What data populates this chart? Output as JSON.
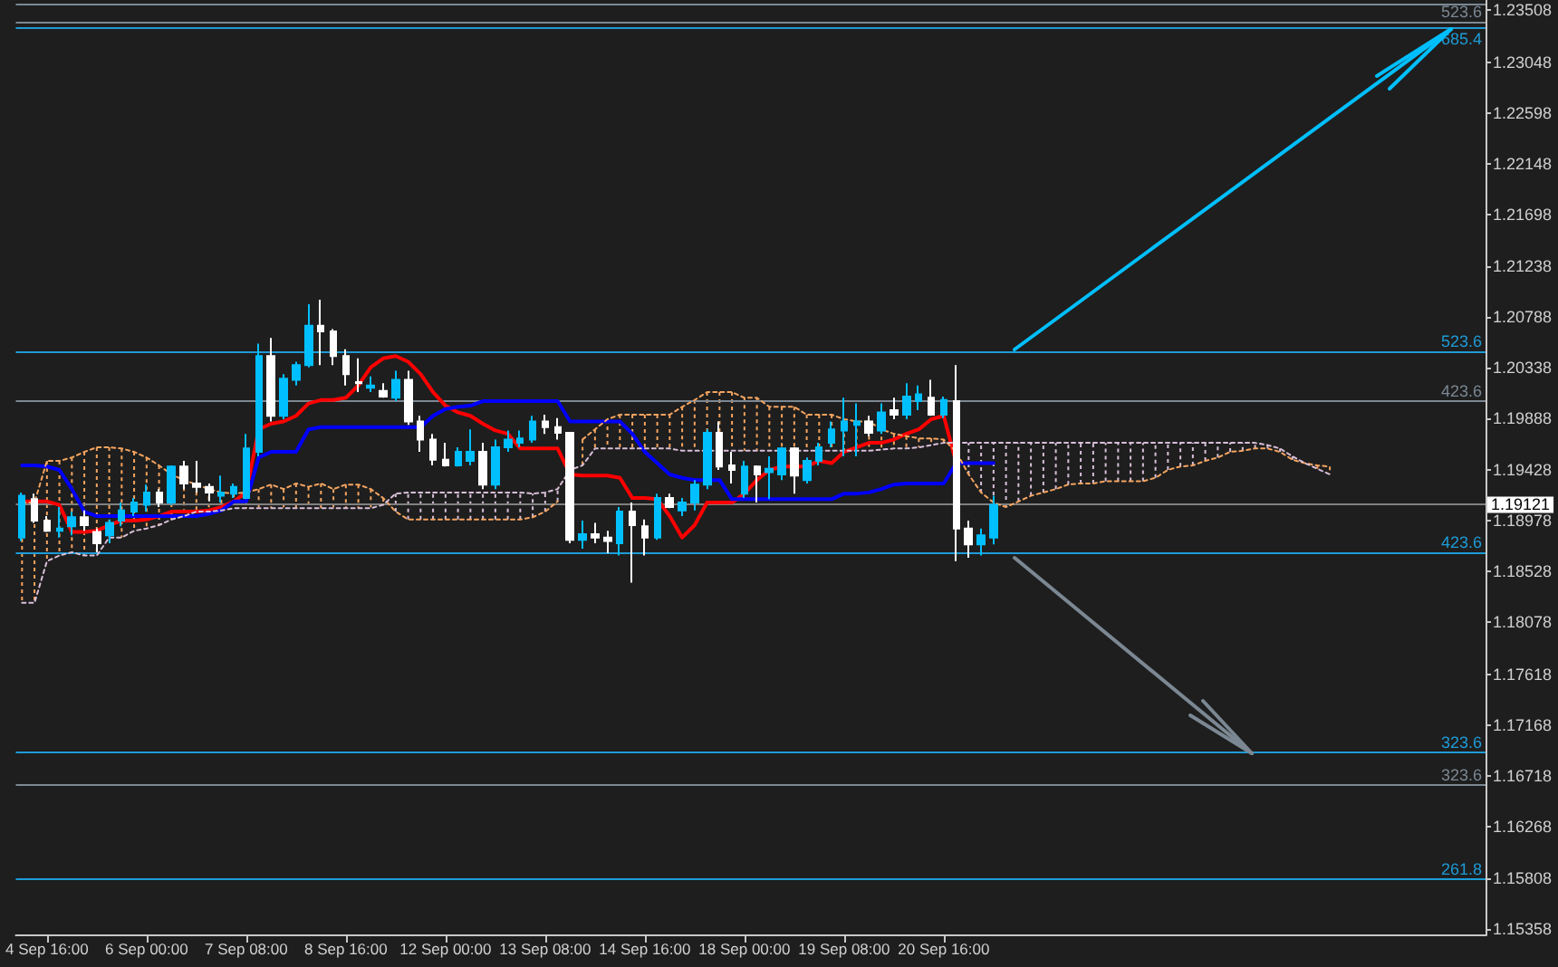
{
  "chart_data": {
    "type": "candlestick",
    "categories": [
      null,
      null,
      "4 Sep 16:00",
      null,
      null,
      null,
      null,
      null,
      null,
      null,
      "6 Sep 00:00",
      null,
      null,
      null,
      null,
      null,
      null,
      null,
      "7 Sep 08:00",
      null,
      null,
      null,
      null,
      null,
      null,
      null,
      "8 Sep 16:00",
      null,
      null,
      null,
      null,
      null,
      null,
      null,
      "12 Sep 00:00",
      null,
      null,
      null,
      null,
      null,
      null,
      null,
      "13 Sep 08:00",
      null,
      null,
      null,
      null,
      null,
      null,
      null,
      "14 Sep 16:00",
      null,
      null,
      null,
      null,
      null,
      null,
      null,
      "18 Sep 00:00",
      null,
      null,
      null,
      null,
      null,
      null,
      null,
      "19 Sep 08:00",
      null,
      null,
      null,
      null,
      null,
      null,
      null,
      "20 Sep 16:00",
      null,
      null,
      null,
      null,
      null,
      null,
      null,
      null,
      null,
      null,
      null,
      null,
      null,
      null,
      null,
      null,
      null,
      null,
      null,
      null,
      null,
      null,
      null,
      null,
      null,
      null,
      null,
      null,
      null,
      null,
      null,
      null,
      null,
      null,
      null,
      null,
      null,
      null,
      null,
      null,
      null,
      null,
      null
    ],
    "ohlc": [
      [
        1.1883,
        1.1923,
        1.188,
        1.192
      ],
      [
        1.1917,
        1.1922,
        1.1896,
        1.1898
      ],
      [
        1.1898,
        1.1902,
        1.1888,
        1.1889
      ],
      [
        1.1889,
        1.191,
        1.1883,
        1.1891
      ],
      [
        1.1893,
        1.1906,
        1.1885,
        1.1901
      ],
      [
        1.1901,
        1.1907,
        1.1889,
        1.1894
      ],
      [
        1.1888,
        1.1891,
        1.187,
        1.1878
      ],
      [
        1.1885,
        1.1899,
        1.1878,
        1.1896
      ],
      [
        1.1898,
        1.1914,
        1.1893,
        1.1907
      ],
      [
        1.1906,
        1.1918,
        1.1902,
        1.1914
      ],
      [
        1.1912,
        1.193,
        1.1906,
        1.1923
      ],
      [
        1.1923,
        1.1926,
        1.191,
        1.1914
      ],
      [
        1.1914,
        1.1947,
        1.1912,
        1.1946
      ],
      [
        1.1946,
        1.1951,
        1.1926,
        1.1931
      ],
      [
        1.1931,
        1.1951,
        1.1923,
        1.1928
      ],
      [
        1.1928,
        1.1931,
        1.1915,
        1.1923
      ],
      [
        1.192,
        1.1938,
        1.1914,
        1.1923
      ],
      [
        1.1922,
        1.1931,
        1.1918,
        1.1928
      ],
      [
        1.1918,
        1.1975,
        1.1917,
        1.1962
      ],
      [
        1.1959,
        1.2055,
        1.1955,
        1.2044
      ],
      [
        1.2044,
        1.206,
        1.1986,
        1.1991
      ],
      [
        1.1991,
        1.2028,
        1.1988,
        1.2024
      ],
      [
        1.2023,
        1.2039,
        1.2018,
        1.2036
      ],
      [
        1.2036,
        1.209,
        1.2034,
        1.2071
      ],
      [
        1.2071,
        1.2094,
        1.2036,
        1.2066
      ],
      [
        1.2066,
        1.2068,
        1.2036,
        1.2044
      ],
      [
        1.2044,
        1.205,
        1.2018,
        1.2028
      ],
      [
        1.2021,
        1.2042,
        1.2012,
        1.202
      ],
      [
        1.2016,
        1.2026,
        1.2012,
        1.2018
      ],
      [
        1.2013,
        1.202,
        1.2007,
        1.2008
      ],
      [
        1.2007,
        1.2031,
        1.2004,
        1.2023
      ],
      [
        1.2023,
        1.2031,
        1.1983,
        1.1986
      ],
      [
        1.1986,
        1.1991,
        1.1959,
        1.197
      ],
      [
        1.197,
        1.1975,
        1.1947,
        1.1952
      ],
      [
        1.1952,
        1.1967,
        1.1946,
        1.1947
      ],
      [
        1.1947,
        1.1963,
        1.1946,
        1.1959
      ],
      [
        1.1951,
        1.1979,
        1.1947,
        1.1959
      ],
      [
        1.1959,
        1.1967,
        1.1926,
        1.193
      ],
      [
        1.193,
        1.197,
        1.1926,
        1.1963
      ],
      [
        1.1963,
        1.1978,
        1.1959,
        1.197
      ],
      [
        1.1967,
        1.1978,
        1.1963,
        1.1971
      ],
      [
        1.197,
        1.1991,
        1.1967,
        1.1986
      ],
      [
        1.1986,
        1.1992,
        1.1975,
        1.1981
      ],
      [
        1.1981,
        1.1989,
        1.197,
        1.1976
      ],
      [
        1.1976,
        1.1976,
        1.1878,
        1.1881
      ],
      [
        1.1881,
        1.1898,
        1.1873,
        1.1886
      ],
      [
        1.1886,
        1.1896,
        1.1878,
        1.1883
      ],
      [
        1.1883,
        1.1889,
        1.1869,
        1.188
      ],
      [
        1.1878,
        1.191,
        1.1867,
        1.1906
      ],
      [
        1.1906,
        1.1914,
        1.1843,
        1.1894
      ],
      [
        1.1893,
        1.1899,
        1.1867,
        1.1883
      ],
      [
        1.1883,
        1.1922,
        1.1881,
        1.1918
      ],
      [
        1.1918,
        1.1922,
        1.1909,
        1.191
      ],
      [
        1.1907,
        1.1918,
        1.1902,
        1.1914
      ],
      [
        1.1914,
        1.1934,
        1.1907,
        1.193
      ],
      [
        1.193,
        1.1979,
        1.1926,
        1.1976
      ],
      [
        1.1976,
        1.1986,
        1.1943,
        1.1946
      ],
      [
        1.1947,
        1.1959,
        1.1931,
        1.1943
      ],
      [
        1.1922,
        1.1951,
        1.1918,
        1.1946
      ],
      [
        1.1946,
        1.1947,
        1.1914,
        1.1939
      ],
      [
        1.1941,
        1.1955,
        1.1917,
        1.1944
      ],
      [
        1.1939,
        1.1963,
        1.1934,
        1.1962
      ],
      [
        1.1962,
        1.1963,
        1.1922,
        1.1938
      ],
      [
        1.1934,
        1.1954,
        1.1931,
        1.1951
      ],
      [
        1.1951,
        1.1967,
        1.1947,
        1.1963
      ],
      [
        1.1967,
        1.1986,
        1.1963,
        1.1979
      ],
      [
        1.1978,
        1.2007,
        1.1955,
        1.1986
      ],
      [
        1.1983,
        1.2002,
        1.1955,
        1.1986
      ],
      [
        1.1986,
        1.1991,
        1.1973,
        1.1976
      ],
      [
        1.1978,
        1.2002,
        1.1975,
        1.1994
      ],
      [
        1.1996,
        1.2007,
        1.1988,
        1.1992
      ],
      [
        1.1992,
        1.202,
        1.1988,
        1.2008
      ],
      [
        1.2004,
        1.2018,
        1.1996,
        1.201
      ],
      [
        1.2007,
        1.2023,
        1.1991,
        1.1992
      ],
      [
        1.1992,
        1.2008,
        1.1989,
        1.2005
      ],
      [
        1.2004,
        1.2036,
        1.1862,
        1.1891
      ],
      [
        1.1891,
        1.1898,
        1.1865,
        1.1877
      ],
      [
        1.1877,
        1.1891,
        1.1867,
        1.1885
      ],
      [
        1.1883,
        1.192,
        1.1877,
        1.1912
      ],
      null,
      null,
      null,
      null,
      null,
      null,
      null,
      null,
      null,
      null,
      null,
      null,
      null,
      null,
      null,
      null,
      null,
      null,
      null,
      null,
      null,
      null,
      null,
      null,
      null,
      null,
      null,
      null,
      null,
      null,
      null,
      null,
      null,
      null,
      null,
      null,
      null,
      null,
      null
    ],
    "colors": [
      "#00bfff",
      "#ffffff",
      "#ffffff",
      "#00bfff",
      "#00bfff",
      "#ffffff",
      "#ffffff",
      "#00bfff",
      "#00bfff",
      "#00bfff",
      "#00bfff",
      "#ffffff",
      "#00bfff",
      "#ffffff",
      "#ffffff",
      "#ffffff",
      "#00bfff",
      "#00bfff",
      "#00bfff",
      "#00bfff",
      "#ffffff",
      "#00bfff",
      "#00bfff",
      "#00bfff",
      "#ffffff",
      "#ffffff",
      "#ffffff",
      "#ffffff",
      "#00bfff",
      "#ffffff",
      "#00bfff",
      "#ffffff",
      "#ffffff",
      "#ffffff",
      "#ffffff",
      "#00bfff",
      "#00bfff",
      "#ffffff",
      "#00bfff",
      "#00bfff",
      "#00bfff",
      "#00bfff",
      "#ffffff",
      "#ffffff",
      "#ffffff",
      "#00bfff",
      "#ffffff",
      "#ffffff",
      "#00bfff",
      "#ffffff",
      "#ffffff",
      "#00bfff",
      "#ffffff",
      "#00bfff",
      "#00bfff",
      "#00bfff",
      "#ffffff",
      "#ffffff",
      "#00bfff",
      "#ffffff",
      "#00bfff",
      "#00bfff",
      "#ffffff",
      "#00bfff",
      "#00bfff",
      "#00bfff",
      "#00bfff",
      "#00bfff",
      "#ffffff",
      "#00bfff",
      "#ffffff",
      "#00bfff",
      "#00bfff",
      "#ffffff",
      "#00bfff",
      "#ffffff",
      "#ffffff",
      "#00bfff",
      "#00bfff",
      null,
      null,
      null,
      null,
      null,
      null,
      null,
      null,
      null,
      null,
      null,
      null,
      null,
      null,
      null,
      null,
      null,
      null,
      null,
      null,
      null,
      null,
      null,
      null,
      null,
      null,
      null,
      null,
      null,
      null,
      null,
      null,
      null,
      null,
      null,
      null,
      null,
      null,
      null
    ],
    "series": [
      {
        "type": "line",
        "color": "#ff0000",
        "line_style": "solid",
        "values": [
          1.1915,
          1.1915,
          1.1915,
          1.1912,
          1.1888,
          1.1888,
          1.1889,
          1.1894,
          1.1898,
          1.1898,
          1.1899,
          1.1902,
          1.1906,
          1.1906,
          1.1906,
          1.1907,
          1.191,
          1.1915,
          1.1923,
          1.1979,
          1.1984,
          1.1986,
          1.1991,
          1.2002,
          1.2005,
          1.2005,
          1.2007,
          1.2018,
          1.2034,
          1.2042,
          1.2044,
          1.2039,
          1.2028,
          1.2012,
          1.2,
          1.1994,
          1.1991,
          1.1984,
          1.1978,
          1.1975,
          1.1962,
          1.1962,
          1.1962,
          1.1962,
          1.1939,
          1.1938,
          1.1938,
          1.1938,
          1.1936,
          1.1918,
          1.1918,
          1.1917,
          1.1902,
          1.1883,
          1.1894,
          1.1914,
          1.1914,
          1.1914,
          1.1922,
          1.1934,
          1.1943,
          1.1946,
          1.1946,
          1.1946,
          1.1951,
          1.1949,
          1.1959,
          1.1963,
          1.1967,
          1.1967,
          1.197,
          1.1975,
          1.1979,
          1.1988,
          1.1991,
          1.1949,
          null,
          null,
          null,
          null,
          null,
          null,
          null,
          null,
          null,
          null,
          null,
          null,
          null,
          null,
          null,
          null,
          null,
          null,
          null,
          null,
          null,
          null,
          null,
          null,
          null,
          null,
          null,
          null,
          null,
          null,
          null,
          null,
          null,
          null,
          null,
          null,
          null,
          null,
          null,
          null,
          null,
          null
        ]
      },
      {
        "type": "line",
        "color": "#0000ff",
        "line_style": "solid",
        "values": [
          1.1947,
          1.1947,
          1.1946,
          1.1943,
          1.1926,
          1.1906,
          1.1902,
          1.1902,
          1.1902,
          1.1902,
          1.1902,
          1.1902,
          1.1902,
          1.1902,
          1.1902,
          1.1904,
          1.1907,
          1.1915,
          1.1915,
          1.1954,
          1.1959,
          1.1959,
          1.1959,
          1.1979,
          1.1981,
          1.1981,
          1.1981,
          1.1981,
          1.1981,
          1.1981,
          1.1981,
          1.1981,
          1.1981,
          1.1991,
          1.1997,
          1.1999,
          1.2,
          1.2004,
          1.2004,
          1.2004,
          1.2004,
          1.2004,
          1.2004,
          1.2004,
          1.1986,
          1.1986,
          1.1986,
          1.1986,
          1.1986,
          1.1975,
          1.1959,
          1.1949,
          1.1939,
          1.1936,
          1.1934,
          1.1934,
          1.1934,
          1.1917,
          1.1917,
          1.1917,
          1.1917,
          1.1917,
          1.1917,
          1.1917,
          1.1917,
          1.1917,
          1.1922,
          1.1922,
          1.1923,
          1.1926,
          1.193,
          1.1931,
          1.1931,
          1.1931,
          1.1931,
          1.1949,
          1.1949,
          1.1949,
          1.1949,
          null,
          null,
          null,
          null,
          null,
          null,
          null,
          null,
          null,
          null,
          null,
          null,
          null,
          null,
          null,
          null,
          null,
          null,
          null,
          null,
          null,
          null,
          null,
          null,
          null,
          null,
          null,
          null,
          null,
          null,
          null,
          null,
          null,
          null,
          null,
          null,
          null,
          null,
          null
        ]
      },
      {
        "type": "line",
        "color": "#f4a460",
        "line_style": "dotted",
        "values": [
          1.1914,
          1.1914,
          1.1951,
          1.1951,
          1.1954,
          1.1959,
          1.1963,
          1.1963,
          1.1962,
          1.1959,
          1.1954,
          1.1947,
          1.1939,
          1.1934,
          1.193,
          1.1926,
          1.1923,
          1.1922,
          1.1923,
          1.1926,
          1.193,
          1.1926,
          1.1931,
          1.1928,
          1.1931,
          1.1926,
          1.193,
          1.193,
          1.1926,
          1.1918,
          1.1906,
          1.1899,
          1.1899,
          1.1899,
          1.1899,
          1.1899,
          1.1899,
          1.1899,
          1.1899,
          1.1899,
          1.1899,
          1.1901,
          1.1906,
          1.1915,
          null,
          1.197,
          1.1979,
          1.1988,
          1.1992,
          1.1992,
          1.1992,
          1.1992,
          1.1992,
          1.1999,
          1.2005,
          1.2012,
          1.2012,
          1.2012,
          1.2007,
          1.2007,
          1.1999,
          1.1999,
          1.1999,
          1.1992,
          1.1992,
          1.1992,
          1.1988,
          1.1986,
          1.1986,
          1.1979,
          1.1975,
          1.1973,
          1.1971,
          1.1971,
          1.197,
          1.1959,
          1.1939,
          1.1923,
          1.1914,
          1.191,
          1.1915,
          1.192,
          1.1923,
          1.1926,
          1.193,
          1.1931,
          1.1931,
          1.1933,
          1.1933,
          1.1933,
          1.1933,
          1.1936,
          1.1943,
          1.1946,
          1.1947,
          1.1951,
          1.1954,
          1.1959,
          1.196,
          1.1962,
          1.1962,
          1.1959,
          1.1952,
          1.1949,
          1.1947,
          1.1946,
          null,
          null,
          null,
          null,
          null,
          null,
          null,
          null,
          null,
          null,
          null,
          null
        ]
      },
      {
        "type": "line",
        "color": "#d8bfd8",
        "line_style": "dotted",
        "values": [
          1.1825,
          1.1825,
          1.1862,
          1.1867,
          1.187,
          1.1867,
          1.1867,
          1.1883,
          1.1883,
          1.1889,
          1.1891,
          1.1894,
          1.1899,
          1.1902,
          1.1906,
          1.1906,
          1.1907,
          1.1909,
          1.1909,
          1.1909,
          1.1909,
          1.1909,
          1.1909,
          1.1909,
          1.1909,
          1.1909,
          1.1909,
          1.1909,
          1.1909,
          1.1912,
          1.1922,
          1.1923,
          1.1923,
          1.1923,
          1.1923,
          1.1923,
          1.1923,
          1.1923,
          1.1923,
          1.1923,
          1.1923,
          1.1922,
          1.1923,
          1.1926,
          1.1943,
          1.1947,
          1.1962,
          1.1962,
          1.1962,
          1.1962,
          1.1962,
          1.1962,
          1.1962,
          1.196,
          1.196,
          1.196,
          1.196,
          1.196,
          1.196,
          1.196,
          1.196,
          1.196,
          1.196,
          1.196,
          1.196,
          1.196,
          1.196,
          1.196,
          1.196,
          1.1961,
          1.1962,
          1.1962,
          1.1963,
          1.1965,
          1.1967,
          1.1967,
          1.1967,
          1.1967,
          1.1967,
          1.1967,
          1.1967,
          1.1967,
          1.1967,
          1.1967,
          1.1967,
          1.1967,
          1.1967,
          1.1967,
          1.1967,
          1.1967,
          1.1967,
          1.1967,
          1.1967,
          1.1967,
          1.1967,
          1.1967,
          1.1967,
          1.1967,
          1.1967,
          1.1967,
          1.1965,
          1.1962,
          1.1955,
          1.1949,
          1.1944,
          1.1939,
          null,
          null,
          null,
          null,
          null,
          null,
          null,
          null,
          null,
          null,
          null,
          null
        ]
      }
    ],
    "ref_lines": [
      {
        "axis": "y",
        "value": 1.2357,
        "color": "#7b8893"
      },
      {
        "axis": "y",
        "value": 1.2341,
        "color": "#7b8893"
      },
      {
        "axis": "y",
        "value": 1.2336,
        "color": "#1e9bd7"
      },
      {
        "axis": "y",
        "value": 1.2048,
        "color": "#1e9bd7"
      },
      {
        "axis": "y",
        "value": 1.2004,
        "color": "#7b8893"
      },
      {
        "axis": "y",
        "value": 1.19121,
        "label": "1.19121",
        "color": "#808080"
      },
      {
        "axis": "y",
        "value": 1.187,
        "color": "#1e9bd7"
      },
      {
        "axis": "y",
        "value": 1.1692,
        "color": "#1e9bd7"
      },
      {
        "axis": "y",
        "value": 1.1663,
        "color": "#7b8893"
      },
      {
        "axis": "y",
        "value": 1.158,
        "color": "#1e9bd7"
      }
    ],
    "annotations": [
      {
        "text": "523.6",
        "y": 1.2341
      },
      {
        "text": "685.4",
        "y": 1.2336
      },
      {
        "text": "523.6",
        "y": 1.2048
      },
      {
        "text": "423.6",
        "y": 1.2004
      },
      {
        "text": "423.6",
        "y": 1.187
      },
      {
        "text": "323.6",
        "y": 1.1692
      },
      {
        "text": "323.6",
        "y": 1.1663
      },
      {
        "text": "261.8",
        "y": 1.158
      }
    ],
    "ylim": [
      1.153,
      1.236
    ],
    "yticks": [
      1.15358,
      1.15808,
      1.16268,
      1.16718,
      1.17168,
      1.17618,
      1.18078,
      1.18528,
      1.18978,
      1.19428,
      1.19888,
      1.20338,
      1.20788,
      1.21238,
      1.21698,
      1.22148,
      1.22598,
      1.23048,
      1.23508
    ],
    "marker": "none"
  }
}
